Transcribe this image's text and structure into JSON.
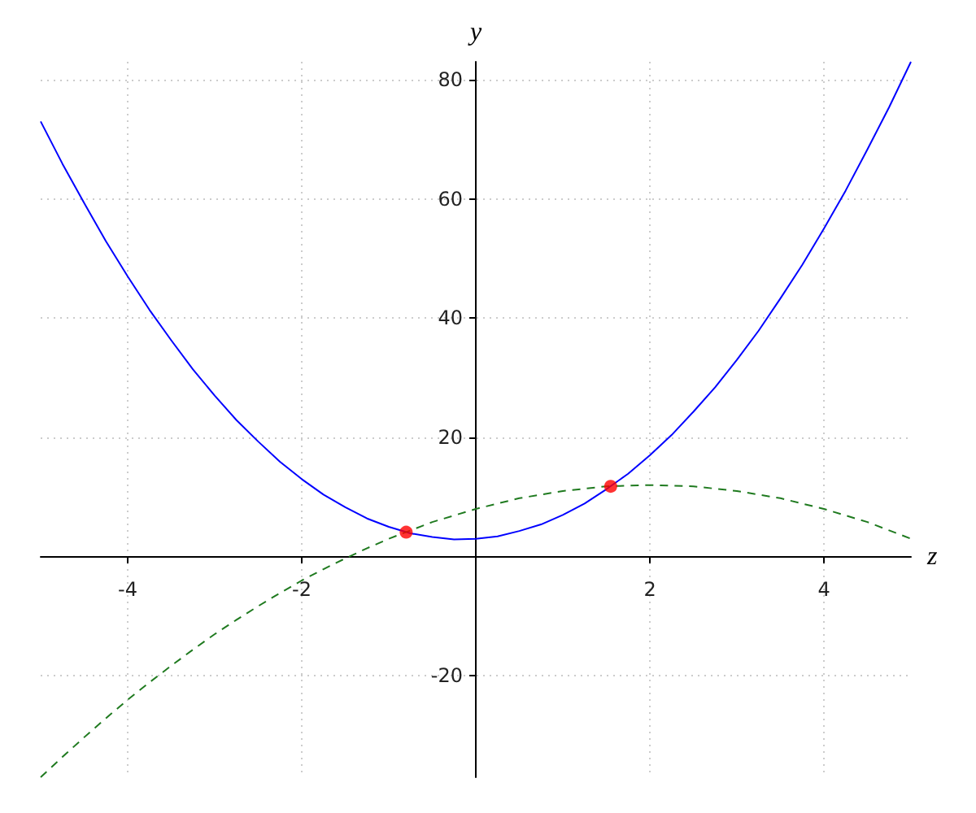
{
  "chart_data": {
    "type": "line",
    "xlabel": "z",
    "ylabel": "y",
    "x": [
      -5,
      -4.75,
      -4.5,
      -4.25,
      -4,
      -3.75,
      -3.5,
      -3.25,
      -3,
      -2.75,
      -2.5,
      -2.25,
      -2,
      -1.75,
      -1.5,
      -1.25,
      -1,
      -0.75,
      -0.5,
      -0.25,
      0,
      0.25,
      0.5,
      0.75,
      1,
      1.25,
      1.5,
      1.75,
      2,
      2.25,
      2.5,
      2.75,
      3,
      3.25,
      3.5,
      3.75,
      4,
      4.25,
      4.5,
      4.75,
      5
    ],
    "series": [
      {
        "color": "#0000ff",
        "line_style": "solid",
        "values": [
          73,
          65.9,
          59.3,
          52.9,
          47,
          41.4,
          36.3,
          31.4,
          27,
          22.9,
          19.3,
          15.9,
          13,
          10.4,
          8.3,
          6.4,
          5,
          3.9,
          3.3,
          2.9,
          3,
          3.4,
          4.3,
          5.4,
          7,
          8.9,
          11.3,
          13.9,
          17,
          20.4,
          24.3,
          28.4,
          33,
          37.9,
          43.3,
          48.9,
          55,
          61.4,
          68.3,
          75.4,
          83
        ]
      },
      {
        "color": "#1f7a1f",
        "line_style": "dashed",
        "values": [
          -37,
          -33.6,
          -30.3,
          -27.1,
          -24,
          -21.1,
          -18.3,
          -15.6,
          -13,
          -10.6,
          -8.3,
          -6.1,
          -4,
          -2.1,
          -0.3,
          1.4,
          3,
          4.4,
          5.8,
          6.9,
          8,
          8.9,
          9.8,
          10.4,
          11,
          11.4,
          11.8,
          11.9,
          12,
          11.9,
          11.8,
          11.4,
          11,
          10.4,
          9.8,
          8.9,
          8,
          6.9,
          5.8,
          4.4,
          3
        ]
      },
      {
        "type": "scatter",
        "color": "#ff0000",
        "marker": "circle",
        "x": [
          -0.8,
          1.55
        ],
        "values": [
          4.1,
          11.8
        ]
      }
    ],
    "marker": "none",
    "xlim": [
      -5,
      5
    ],
    "ylim": [
      -37,
      83
    ],
    "xticks": [
      -4,
      -2,
      2,
      4
    ],
    "yticks": [
      -20,
      20,
      40,
      60,
      80
    ],
    "grid": true
  }
}
